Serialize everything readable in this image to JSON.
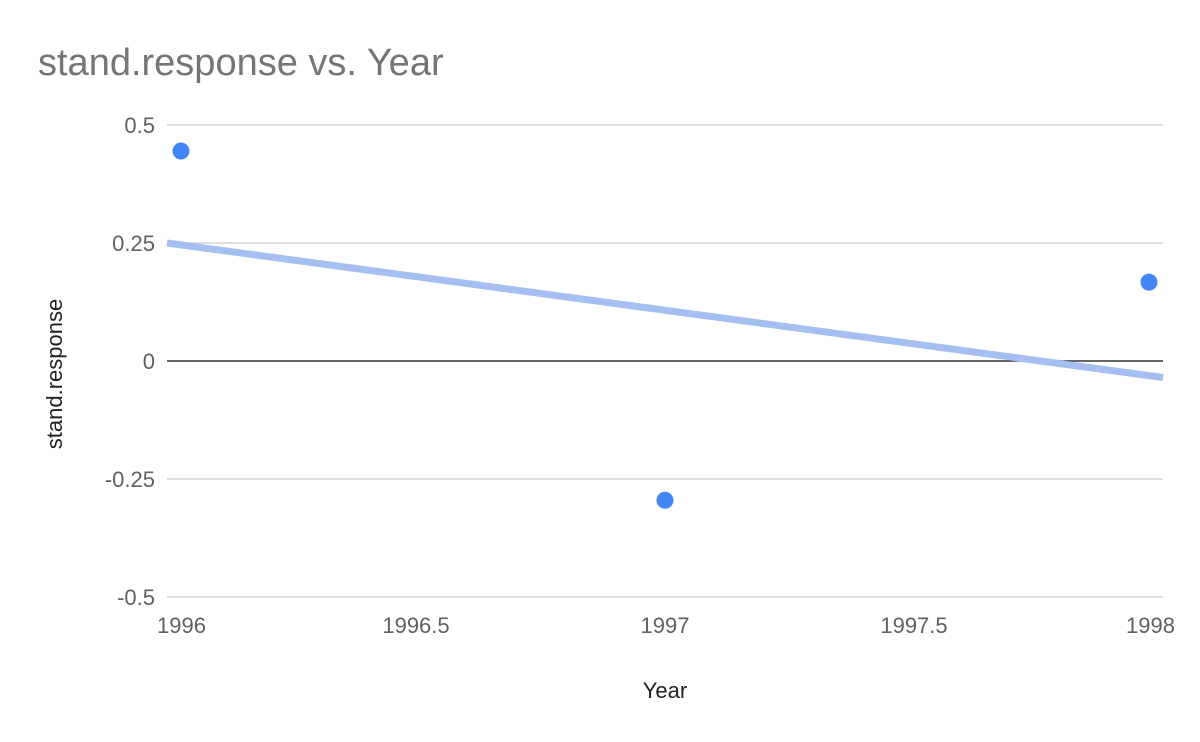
{
  "chart_data": {
    "type": "scatter",
    "title": "stand.response vs. Year",
    "xlabel": "Year",
    "ylabel": "stand.response",
    "xlim": [
      1996,
      1998
    ],
    "ylim": [
      -0.5,
      0.5
    ],
    "x_ticks": [
      "1996",
      "1996.5",
      "1997",
      "1997.5",
      "1998"
    ],
    "y_ticks": [
      "0.5",
      "0.25",
      "0",
      "-0.25",
      "-0.5"
    ],
    "grid": true,
    "points": [
      {
        "x": 1996,
        "y": 0.445
      },
      {
        "x": 1997,
        "y": -0.295
      },
      {
        "x": 1998,
        "y": 0.167
      }
    ],
    "trendline": {
      "x": [
        1996,
        1998
      ],
      "y": [
        0.25,
        -0.035
      ]
    },
    "colors": {
      "points": "#4285f4",
      "trendline": "#a4bff0",
      "grid": "#cccccc",
      "zero_line": "#333333"
    }
  }
}
